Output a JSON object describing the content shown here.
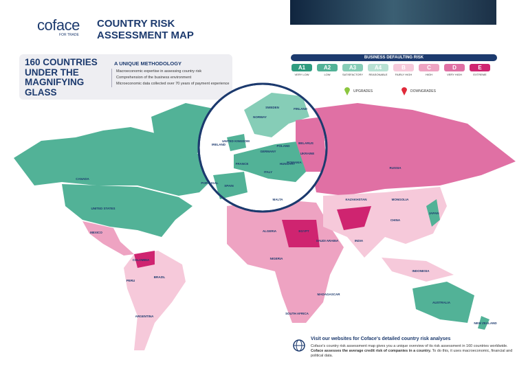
{
  "header": {
    "logo": "coface",
    "logo_tagline": "FOR TRADE",
    "title": "COUNTRY RISK ASSESSMENT MAP"
  },
  "intro": {
    "headline": "160 COUNTRIES UNDER THE MAGNIFYING GLASS",
    "method_title": "A UNIQUE METHODOLOGY",
    "bullets": [
      "Macroeconomic expertise in assessing country risk",
      "Comprehension of the business environment",
      "Microeconomic data collected over 70 years of payment experience"
    ]
  },
  "legend": {
    "title": "BUSINESS DEFAULTING RISK",
    "grades": [
      {
        "grade": "A1",
        "label": "VERY LOW",
        "color": "#2f9c80"
      },
      {
        "grade": "A2",
        "label": "LOW",
        "color": "#52b297"
      },
      {
        "grade": "A3",
        "label": "SATISFACTORY",
        "color": "#86cdb7"
      },
      {
        "grade": "A4",
        "label": "REASONABLE",
        "color": "#b8e1d3"
      },
      {
        "grade": "B",
        "label": "FAIRLY HIGH",
        "color": "#f6c9da"
      },
      {
        "grade": "C",
        "label": "HIGH",
        "color": "#eea3c2"
      },
      {
        "grade": "D",
        "label": "VERY HIGH",
        "color": "#e070a4"
      },
      {
        "grade": "E",
        "label": "EXTREME",
        "color": "#cf2470"
      }
    ],
    "upgrades": "UPGRADES",
    "downgrades": "DOWNGRADES"
  },
  "countries": [
    "CANADA",
    "UNITED STATES",
    "MEXICO",
    "BRAZIL",
    "ARGENTINA",
    "PERU",
    "COLOMBIA",
    "RUSSIA",
    "KAZAKHSTAN",
    "MONGOLIA",
    "CHINA",
    "INDIA",
    "JAPAN",
    "INDONESIA",
    "AUSTRALIA",
    "NEW ZEALAND",
    "ALGERIA",
    "EGYPT",
    "NIGERIA",
    "SAUDI ARABIA",
    "SOUTH AFRICA",
    "MADAGASCAR",
    "NORWAY",
    "SWEDEN",
    "FINLAND",
    "UNITED KINGDOM",
    "IRELAND",
    "FRANCE",
    "GERMANY",
    "POLAND",
    "UKRAINE",
    "BELARUS",
    "SPAIN",
    "PORTUGAL",
    "ITALY",
    "ROMANIA",
    "HUNGARY",
    "MALTA"
  ],
  "footer": {
    "title": "Visit our websites for Coface's detailed country risk analyses",
    "body_start": "Coface's country risk assessment map gives you a unique overview of its risk assessment in 160 countries worldwide.",
    "body_bold": "Coface assesses the average credit risk of companies in a country.",
    "body_end": "To do this, it uses macroeconomic, financial and political data."
  }
}
